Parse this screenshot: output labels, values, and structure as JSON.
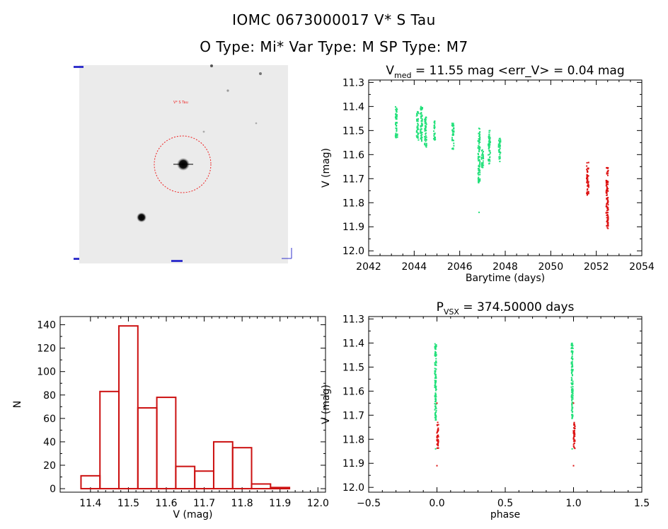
{
  "header": {
    "line1": "IOMC 0673000017    V* S Tau",
    "line2": "O Type: Mi*   Var Type: M   SP Type: M7"
  },
  "colors": {
    "green": "#22e07a",
    "red": "#dd1111",
    "hist": "#cc1111",
    "circle": "#ee2222",
    "label_blue": "#3333cc"
  },
  "thumbnail": {
    "star_label": "V* S Tau"
  },
  "chart_data": [
    {
      "id": "lightcurve",
      "type": "scatter",
      "title_main": "V",
      "title_sub": "med",
      "title_rest": " = 11.55 mag <err_V> = 0.04 mag",
      "xlabel": "Barytime (days)",
      "ylabel": "V (mag)",
      "xlim": [
        2042,
        2054
      ],
      "ylim": [
        12.02,
        11.29
      ],
      "xticks": [
        2042,
        2044,
        2046,
        2048,
        2050,
        2052,
        2054
      ],
      "yticks": [
        11.3,
        11.4,
        11.5,
        11.6,
        11.7,
        11.8,
        11.9,
        12.0
      ],
      "series": [
        {
          "name": "good",
          "color": "green",
          "clusters": [
            {
              "x": 2043.22,
              "y0": 11.4,
              "y1": 11.53
            },
            {
              "x": 2044.15,
              "y0": 11.42,
              "y1": 11.54
            },
            {
              "x": 2044.32,
              "y0": 11.4,
              "y1": 11.55
            },
            {
              "x": 2044.5,
              "y0": 11.44,
              "y1": 11.57
            },
            {
              "x": 2044.9,
              "y0": 11.46,
              "y1": 11.54
            },
            {
              "x": 2045.7,
              "y0": 11.47,
              "y1": 11.58
            },
            {
              "x": 2046.85,
              "y0": 11.49,
              "y1": 11.72
            },
            {
              "x": 2047.0,
              "y0": 11.58,
              "y1": 11.66
            },
            {
              "x": 2047.3,
              "y0": 11.5,
              "y1": 11.64
            },
            {
              "x": 2047.75,
              "y0": 11.53,
              "y1": 11.63
            }
          ],
          "outliers": [
            {
              "x": 2046.85,
              "y": 11.84
            }
          ]
        },
        {
          "name": "flagged",
          "color": "red",
          "clusters": [
            {
              "x": 2051.62,
              "y0": 11.63,
              "y1": 11.77
            },
            {
              "x": 2052.48,
              "y0": 11.65,
              "y1": 11.91
            }
          ],
          "outliers": []
        }
      ]
    },
    {
      "id": "histogram",
      "type": "bar",
      "xlabel": "V (mag)",
      "ylabel": "N",
      "xlim": [
        11.32,
        12.02
      ],
      "ylim": [
        -3,
        147
      ],
      "xticks": [
        11.4,
        11.5,
        11.6,
        11.7,
        11.8,
        11.9,
        12.0
      ],
      "yticks": [
        0,
        20,
        40,
        60,
        80,
        100,
        120,
        140
      ],
      "bin_width": 0.05,
      "bins": [
        {
          "x": 11.4,
          "value": 11
        },
        {
          "x": 11.45,
          "value": 83
        },
        {
          "x": 11.5,
          "value": 139
        },
        {
          "x": 11.55,
          "value": 69
        },
        {
          "x": 11.6,
          "value": 78
        },
        {
          "x": 11.65,
          "value": 19
        },
        {
          "x": 11.7,
          "value": 15
        },
        {
          "x": 11.75,
          "value": 40
        },
        {
          "x": 11.8,
          "value": 35
        },
        {
          "x": 11.85,
          "value": 4
        },
        {
          "x": 11.9,
          "value": 1
        }
      ]
    },
    {
      "id": "phased",
      "type": "scatter",
      "title_main": "P",
      "title_sub": "VSX",
      "title_rest": " = 374.50000 days",
      "xlabel": "phase",
      "ylabel": "V (mag)",
      "xlim": [
        -0.5,
        1.5
      ],
      "ylim": [
        12.02,
        11.29
      ],
      "xticks": [
        -0.5,
        0.0,
        0.5,
        1.0,
        1.5
      ],
      "xticklabels": [
        "−0.5",
        "0.0",
        "0.5",
        "1.0",
        "1.5"
      ],
      "yticks": [
        11.3,
        11.4,
        11.5,
        11.6,
        11.7,
        11.8,
        11.9,
        12.0
      ],
      "series": [
        {
          "name": "good",
          "color": "green",
          "clusters": [
            {
              "x": -0.01,
              "y0": 11.4,
              "y1": 11.72
            },
            {
              "x": 0.99,
              "y0": 11.4,
              "y1": 11.72
            }
          ],
          "outliers": [
            {
              "x": -0.01,
              "y": 11.84
            },
            {
              "x": 0.99,
              "y": 11.84
            }
          ]
        },
        {
          "name": "flagged",
          "color": "red",
          "clusters": [
            {
              "x": 0.005,
              "y0": 11.73,
              "y1": 11.84
            },
            {
              "x": 1.005,
              "y0": 11.73,
              "y1": 11.84
            }
          ],
          "outliers": [
            {
              "x": 0.0,
              "y": 11.65
            },
            {
              "x": 0.0,
              "y": 11.91
            },
            {
              "x": 1.0,
              "y": 11.65
            },
            {
              "x": 1.0,
              "y": 11.91
            }
          ]
        }
      ]
    }
  ]
}
